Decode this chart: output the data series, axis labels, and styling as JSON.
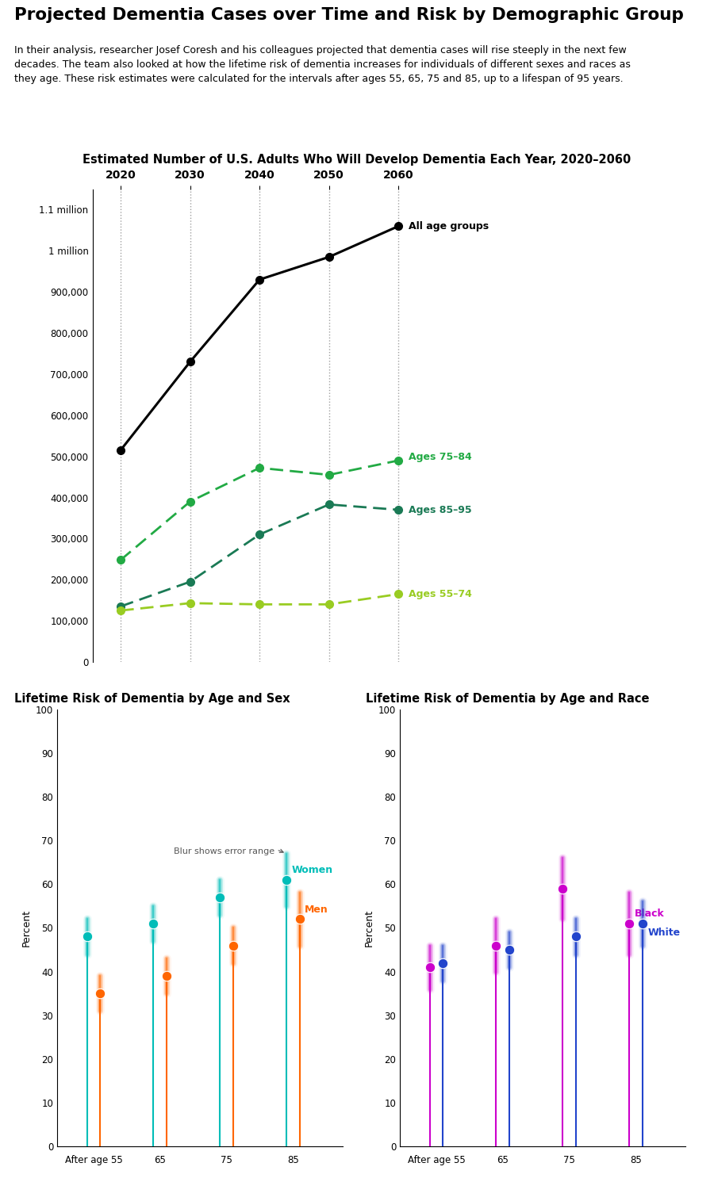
{
  "title": "Projected Dementia Cases over Time and Risk by Demographic Group",
  "subtitle_line1": "In their analysis, researcher Josef Coresh and his colleagues projected that dementia cases will rise steeply in the next few",
  "subtitle_line2": "decades. The team also looked at how the lifetime risk of dementia increases for individuals of different sexes and races as",
  "subtitle_line3": "they age. These risk estimates were calculated for the intervals after ages 55, 65, 75 and 85, up to a lifespan of 95 years.",
  "line_chart_title": "Estimated Number of U.S. Adults Who Will Develop Dementia Each Year, 2020–2060",
  "years": [
    2020,
    2030,
    2040,
    2050,
    2060
  ],
  "all_ages": [
    515000,
    730000,
    930000,
    985000,
    1060000
  ],
  "ages_75_84": [
    248000,
    390000,
    472000,
    455000,
    490000
  ],
  "ages_85_95": [
    135000,
    195000,
    310000,
    383000,
    370000
  ],
  "ages_55_74": [
    125000,
    143000,
    140000,
    140000,
    165000
  ],
  "women_values": [
    48,
    51,
    57,
    61
  ],
  "women_low": [
    44,
    47,
    53,
    55
  ],
  "women_high": [
    52,
    55,
    61,
    67
  ],
  "men_values": [
    35,
    39,
    46,
    52
  ],
  "men_low": [
    31,
    35,
    42,
    46
  ],
  "men_high": [
    39,
    43,
    50,
    58
  ],
  "black_values": [
    41,
    46,
    59,
    51
  ],
  "black_low": [
    36,
    40,
    52,
    44
  ],
  "black_high": [
    46,
    52,
    66,
    58
  ],
  "white_values": [
    42,
    45,
    48,
    51
  ],
  "white_low": [
    38,
    41,
    44,
    46
  ],
  "white_high": [
    46,
    49,
    52,
    56
  ],
  "color_all": "#000000",
  "color_75_84": "#22aa44",
  "color_85_95": "#1a7a55",
  "color_55_74": "#99cc22",
  "color_women": "#00bdb8",
  "color_men": "#ff6600",
  "color_black": "#cc00cc",
  "color_white": "#2244cc",
  "lollipop_sex_title": "Lifetime Risk of Dementia by Age and Sex",
  "lollipop_race_title": "Lifetime Risk of Dementia by Age and Race",
  "sex_age_labels": [
    "After age 55",
    "65",
    "75",
    "85"
  ],
  "race_age_labels": [
    "After age 55",
    "65",
    "75",
    "85"
  ]
}
